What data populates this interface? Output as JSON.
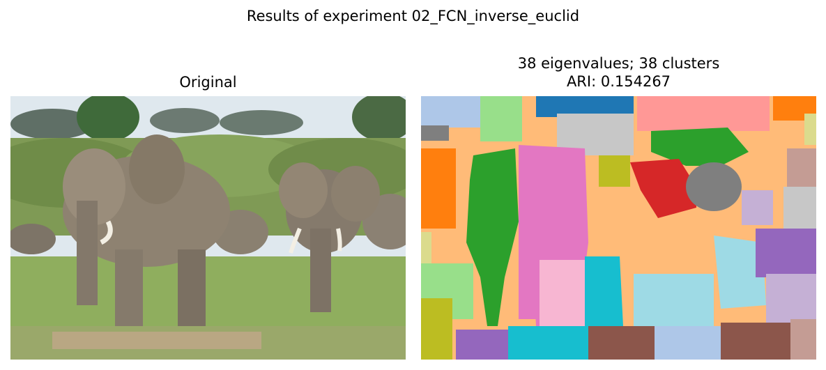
{
  "figure": {
    "suptitle": "Results of experiment 02_FCN_inverse_euclid"
  },
  "left_panel": {
    "title": "Original"
  },
  "right_panel": {
    "title_line1": "38 eigenvalues; 38 clusters",
    "title_line2": "ARI: 0.154267"
  },
  "colors": {
    "sky": "#dfe8ee",
    "grass": "#8aa85a",
    "elephant": "#8b7d6b",
    "seg_orange": "#ff7f0e",
    "seg_light_orange": "#ffbb78",
    "seg_green": "#2ca02c",
    "seg_light_green": "#98df8a",
    "seg_red": "#d62728",
    "seg_pink": "#e377c2",
    "seg_light_pink": "#f7b6d2",
    "seg_cyan": "#17becf",
    "seg_light_cyan": "#9edae5",
    "seg_gray": "#7f7f7f",
    "seg_light_gray": "#c7c7c7",
    "seg_blue": "#1f77b4",
    "seg_light_blue": "#aec7e8",
    "seg_purple": "#9467bd",
    "seg_light_purple": "#c5b0d5",
    "seg_brown": "#8c564b",
    "seg_light_brown": "#c49c94",
    "seg_olive": "#bcbd22",
    "seg_salmon": "#ff9896"
  }
}
